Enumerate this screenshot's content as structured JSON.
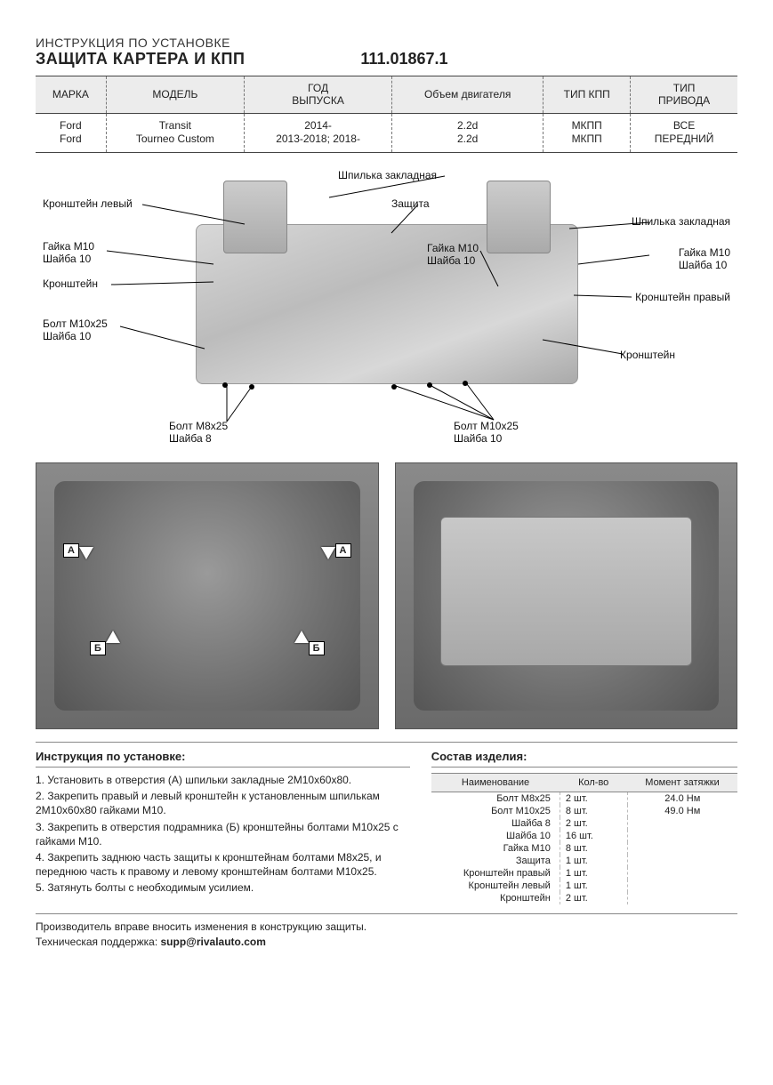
{
  "header": {
    "line1": "ИНСТРУКЦИЯ ПО УСТАНОВКЕ",
    "line2": "ЗАЩИТА КАРТЕРА И КПП",
    "partno": "111.01867.1"
  },
  "vehicle_table": {
    "columns": [
      "МАРКА",
      "МОДЕЛЬ",
      "ГОД\nВЫПУСКА",
      "Объем двигателя",
      "ТИП КПП",
      "ТИП\nПРИВОДА"
    ],
    "rows": [
      [
        "Ford\nFord",
        "Transit\nTourneo Custom",
        "2014-\n2013-2018; 2018-",
        "2.2d\n2.2d",
        "МКПП\nМКПП",
        "ВСЕ\nПЕРЕДНИЙ"
      ]
    ]
  },
  "diagram_callouts": {
    "c1": "Кронштейн левый",
    "c2": "Гайка М10\nШайба 10",
    "c3": "Кронштейн",
    "c4": "Болт М10х25\nШайба 10",
    "c5": "Болт М8х25\nШайба 8",
    "c6": "Шпилька закладная",
    "c7": "Защита",
    "c8": "Гайка М10\nШайба 10",
    "c9": "Шпилька закладная",
    "c10": "Гайка М10\nШайба 10",
    "c11": "Кронштейн правый",
    "c12": "Кронштейн",
    "c13": "Болт М10х25\nШайба 10"
  },
  "photo_markers": {
    "A": "А",
    "B": "Б"
  },
  "instructions": {
    "title": "Инструкция по установке:",
    "steps": [
      "1. Установить в отверстия (А) шпильки закладные 2М10х60х80.",
      "2. Закрепить правый и левый кронштейн к установленным шпилькам 2М10х60х80 гайками М10.",
      "3. Закрепить в отверстия подрамника (Б) кронштейны болтами М10х25 с гайками М10.",
      "4. Закрепить заднюю часть защиты к кронштейнам болтами М8х25, и переднюю часть к правому и левому кронштейнам болтами М10х25.",
      "5. Затянуть болты с необходимым усилием."
    ]
  },
  "parts": {
    "title": "Состав изделия:",
    "columns": [
      "Наименование",
      "Кол-во",
      "Момент затяжки"
    ],
    "rows": [
      [
        "Болт М8х25",
        "2 шт.",
        "24.0 Нм"
      ],
      [
        "Болт М10х25",
        "8 шт.",
        "49.0 Нм"
      ],
      [
        "Шайба 8",
        "2 шт.",
        ""
      ],
      [
        "Шайба 10",
        "16 шт.",
        ""
      ],
      [
        "Гайка М10",
        "8 шт.",
        ""
      ],
      [
        "Защита",
        "1 шт.",
        ""
      ],
      [
        "Кронштейн правый",
        "1 шт.",
        ""
      ],
      [
        "Кронштейн левый",
        "1 шт.",
        ""
      ],
      [
        "Кронштейн",
        "2 шт.",
        ""
      ]
    ]
  },
  "footer": {
    "note": "Производитель вправе вносить изменения в конструкцию защиты.",
    "support_label": "Техническая поддержка: ",
    "support_email": "supp@rivalauto.com"
  }
}
